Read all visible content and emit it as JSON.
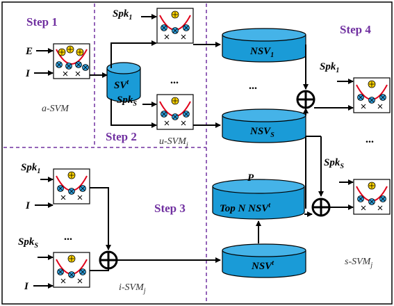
{
  "steps": {
    "step1": "Step 1",
    "step2": "Step 2",
    "step3": "Step 3",
    "step4": "Step 4"
  },
  "inputs": {
    "E": "E",
    "I_top": "I",
    "I_mid": "I",
    "I_bot": "I",
    "spk": "Spk",
    "sub1": "1",
    "subS": "S"
  },
  "stores": {
    "sv": "SV",
    "sv_sup": "t",
    "nsv": "NSV",
    "nsv_sub1": "1",
    "nsv_subS": "S",
    "nsv_t_sup": "t",
    "topn_prefix": "Top N NSV",
    "topn_sup": "t",
    "p_label": "P"
  },
  "captions": {
    "a_svm": "a-SVM",
    "u_svm": "u-SVM",
    "i_svm": "i-SVM",
    "s_svm": "s-SVM",
    "sub_j": "j"
  },
  "ellipsis": "..."
}
